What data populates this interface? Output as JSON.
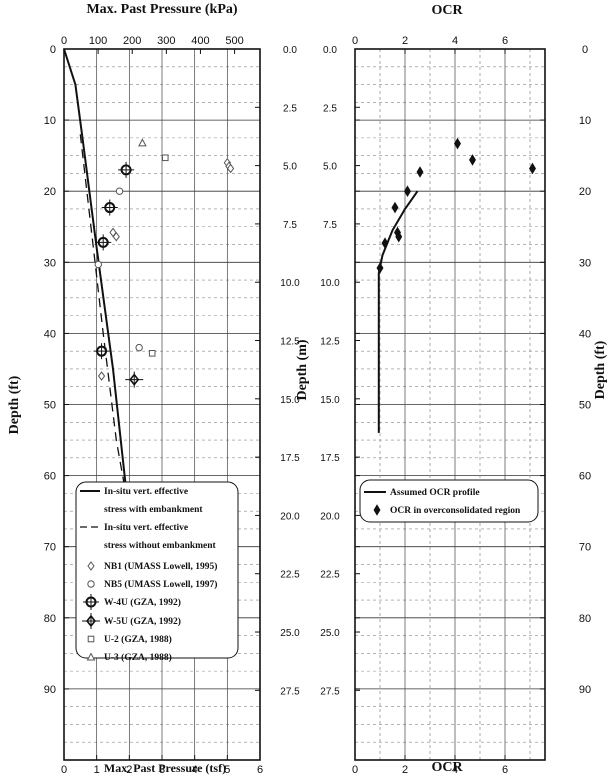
{
  "chart_data": [
    {
      "type": "scatter",
      "panel": "left",
      "xlabel_bottom": "Max. Past Pressure (tsf)",
      "xlabel_top": "Max. Past Pressure (kPa)",
      "ylabel": "Depth (ft)",
      "xlim": [
        0,
        6
      ],
      "ylim": [
        0,
        100
      ],
      "y_inverted": true,
      "x_ticks_bottom": [
        "0",
        "1",
        "2",
        "3",
        "4",
        "5",
        "6"
      ],
      "x_ticks_top": [
        {
          "label": "0",
          "value": 0
        },
        {
          "label": "100",
          "value": 1.044
        },
        {
          "label": "200",
          "value": 2.089
        },
        {
          "label": "300",
          "value": 3.133
        },
        {
          "label": "400",
          "value": 4.177
        },
        {
          "label": "500",
          "value": 5.222
        }
      ],
      "y_ticks_ft": [
        "0",
        "10",
        "20",
        "30",
        "40",
        "50",
        "60",
        "70",
        "80",
        "90"
      ],
      "y_ticks_m": [
        {
          "label": "0.0",
          "value": 0
        },
        {
          "label": "2.5",
          "value": 8.2
        },
        {
          "label": "5.0",
          "value": 16.4
        },
        {
          "label": "7.5",
          "value": 24.6
        },
        {
          "label": "10.0",
          "value": 32.8
        },
        {
          "label": "12.5",
          "value": 41.0
        },
        {
          "label": "15.0",
          "value": 49.2
        },
        {
          "label": "17.5",
          "value": 57.4
        },
        {
          "label": "20.0",
          "value": 65.6
        },
        {
          "label": "22.5",
          "value": 73.8
        },
        {
          "label": "25.0",
          "value": 82.0
        },
        {
          "label": "27.5",
          "value": 90.2
        }
      ],
      "lines": [
        {
          "name": "In-situ vert. effective stress with embankment",
          "style": "solid",
          "points": [
            [
              0,
              0
            ],
            [
              0.35,
              5
            ],
            [
              0.55,
              12
            ],
            [
              1.0,
              28
            ],
            [
              1.5,
              45
            ],
            [
              1.95,
              64
            ]
          ]
        },
        {
          "name": "In-situ vert. effective stress without embankment",
          "style": "dashed",
          "points": [
            [
              0.5,
              12
            ],
            [
              0.9,
              28
            ],
            [
              1.2,
              40
            ],
            [
              1.6,
              55
            ],
            [
              1.95,
              64
            ]
          ]
        }
      ],
      "series": [
        {
          "name": "NB1 (UMASS Lowell, 1995)",
          "marker": "diamond",
          "points": [
            [
              1.5,
              25.8
            ],
            [
              1.6,
              26.4
            ],
            [
              5.0,
              16.0
            ],
            [
              5.05,
              16.5
            ],
            [
              5.1,
              16.8
            ],
            [
              1.15,
              46.0
            ]
          ]
        },
        {
          "name": "NB5 (UMASS Lowell, 1997)",
          "marker": "circle",
          "points": [
            [
              1.7,
              20.0
            ],
            [
              1.05,
              30.3
            ],
            [
              1.2,
              42.3
            ],
            [
              2.3,
              42.0
            ]
          ]
        },
        {
          "name": "W-4U (GZA, 1992)",
          "marker": "circle-cross",
          "points": [
            [
              1.9,
              17.0
            ],
            [
              1.4,
              22.3
            ],
            [
              1.2,
              27.2
            ],
            [
              1.15,
              42.5
            ]
          ]
        },
        {
          "name": "W-5U (GZA, 1992)",
          "marker": "diamond-cross",
          "points": [
            [
              2.15,
              46.5
            ]
          ]
        },
        {
          "name": "U-2 (GZA, 1988)",
          "marker": "square",
          "points": [
            [
              3.1,
              15.3
            ],
            [
              2.7,
              42.8
            ]
          ]
        },
        {
          "name": "U-3 (GZA, 1988)",
          "marker": "triangle",
          "points": [
            [
              2.4,
              13.2
            ]
          ]
        }
      ],
      "legend_title": "",
      "legend_labels": [
        "In-situ vert. effective",
        "stress with embankment",
        "In-situ vert. effective",
        "stress without embankment",
        "NB1 (UMASS Lowell, 1995)",
        "NB5 (UMASS Lowell, 1997)",
        "W-4U (GZA, 1992)",
        "W-5U (GZA, 1992)",
        "U-2 (GZA, 1988)",
        "U-3 (GZA, 1988)"
      ],
      "grid": true,
      "legend_placement": "lower-center"
    },
    {
      "type": "scatter",
      "panel": "right",
      "xlabel_bottom": "OCR",
      "xlabel_top": "OCR",
      "ylabel_left": "Depth (m)",
      "ylabel_right": "Depth (ft)",
      "xlim": [
        0,
        7.6
      ],
      "ylim": [
        0,
        100
      ],
      "y_inverted": true,
      "x_ticks_bottom": [
        "0",
        "2",
        "4",
        "6"
      ],
      "x_ticks_top": [
        "0",
        "2",
        "4",
        "6"
      ],
      "y_ticks_ft": [
        "0",
        "10",
        "20",
        "30",
        "40",
        "50",
        "60",
        "70",
        "80",
        "90"
      ],
      "y_ticks_m": [
        {
          "label": "0.0",
          "value": 0
        },
        {
          "label": "2.5",
          "value": 8.2
        },
        {
          "label": "5.0",
          "value": 16.4
        },
        {
          "label": "7.5",
          "value": 24.6
        },
        {
          "label": "10.0",
          "value": 32.8
        },
        {
          "label": "12.5",
          "value": 41.0
        },
        {
          "label": "15.0",
          "value": 49.2
        },
        {
          "label": "17.5",
          "value": 57.4
        },
        {
          "label": "20.0",
          "value": 65.6
        },
        {
          "label": "22.5",
          "value": 73.8
        },
        {
          "label": "25.0",
          "value": 82.0
        },
        {
          "label": "27.5",
          "value": 90.2
        }
      ],
      "lines": [
        {
          "name": "Assumed OCR profile",
          "style": "solid",
          "points": [
            [
              2.5,
              20.0
            ],
            [
              2.0,
              22.5
            ],
            [
              1.5,
              25.5
            ],
            [
              1.1,
              29.0
            ],
            [
              0.95,
              31.5
            ],
            [
              0.95,
              54.0
            ]
          ]
        }
      ],
      "series": [
        {
          "name": "OCR in overconsolidated region",
          "marker": "diamond-filled",
          "points": [
            [
              4.1,
              13.3
            ],
            [
              4.7,
              15.6
            ],
            [
              7.1,
              16.8
            ],
            [
              2.6,
              17.3
            ],
            [
              2.1,
              20.0
            ],
            [
              1.6,
              22.3
            ],
            [
              1.7,
              25.8
            ],
            [
              1.75,
              26.4
            ],
            [
              1.2,
              27.3
            ],
            [
              1.0,
              30.8
            ]
          ]
        }
      ],
      "legend_labels": [
        "Assumed OCR profile",
        "OCR in overconsolidated region"
      ],
      "grid": true,
      "legend_placement": "lower-center"
    }
  ]
}
